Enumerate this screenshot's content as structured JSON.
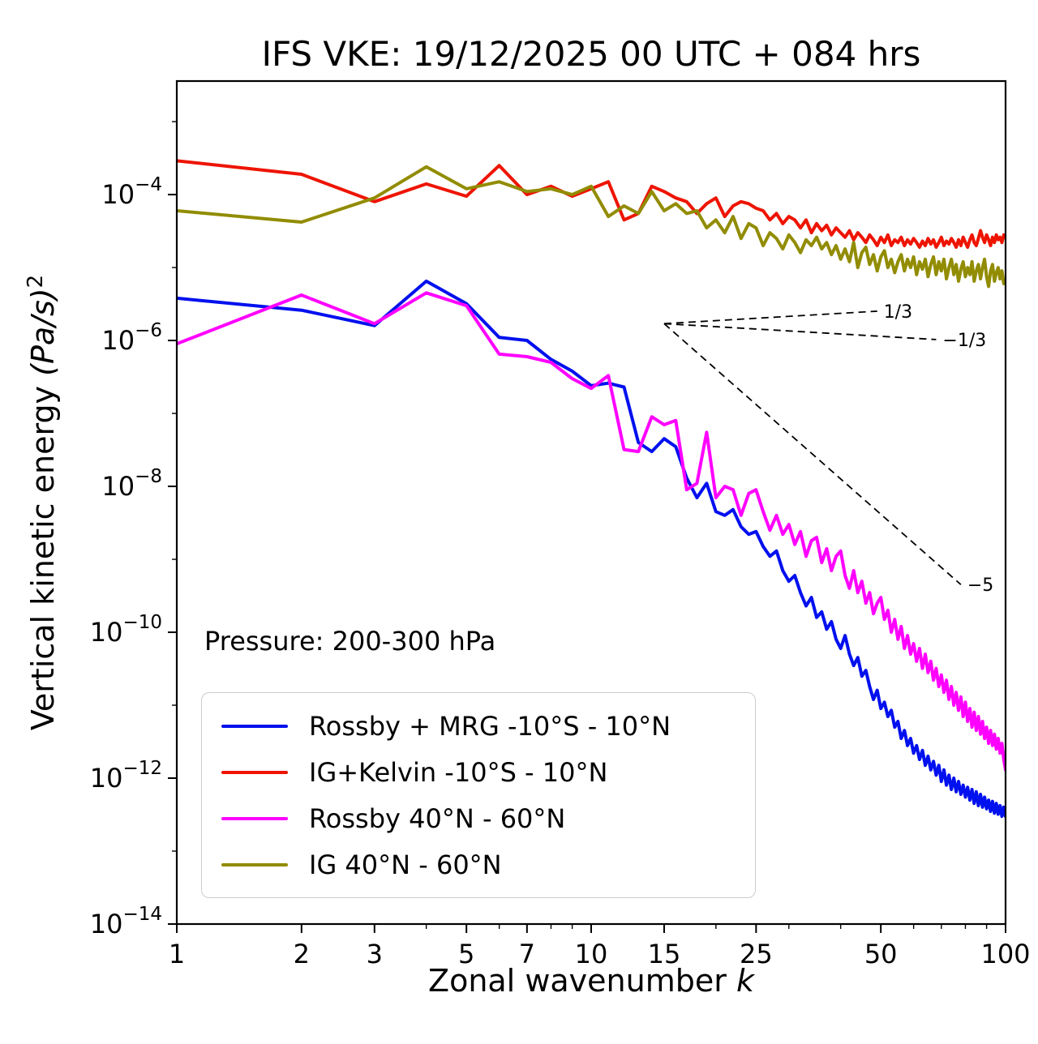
{
  "figure": {
    "title": "IFS VKE: 19/12/2025 00 UTC + 084 hrs",
    "xlabel_prefix": "Zonal wavenumber ",
    "xlabel_var": "k",
    "ylabel_prefix": "Vertical kinetic energy ",
    "ylabel_units": "(Pa/s)",
    "ylabel_sup": "2",
    "annotation": "Pressure: 200-300 hPa"
  },
  "chart_data": {
    "type": "line",
    "title": "IFS VKE: 19/12/2025 00 UTC + 084 hrs",
    "xlabel": "Zonal wavenumber k",
    "ylabel": "Vertical kinetic energy (Pa/s)^2",
    "annotation": "Pressure: 200-300 hPa",
    "x_scale": "log",
    "y_scale": "log",
    "xlim": [
      1,
      100
    ],
    "ylim": [
      1e-14,
      0.0036
    ],
    "x_ticks": [
      1,
      2,
      3,
      5,
      7,
      10,
      15,
      25,
      50,
      100
    ],
    "x_minor_ticks": [
      4,
      6,
      8,
      9,
      20,
      30,
      40,
      60,
      70,
      80,
      90
    ],
    "y_tick_exponents": [
      -4,
      -6,
      -8,
      -10,
      -12,
      -14
    ],
    "y_minor_tick_exponents": [
      -3,
      -5,
      -7,
      -9,
      -11,
      -13
    ],
    "grid": false,
    "legend_position": "lower left",
    "x_is_integer_wavenumbers_1_to_100": true,
    "series": [
      {
        "key": "rossby-mrg-tropics",
        "name": "Rossby + MRG -10°S - 10°N",
        "color": "#0010ee",
        "values": [
          3.8e-06,
          2.6e-06,
          1.6e-06,
          6.5e-06,
          3.2e-06,
          1.1e-06,
          1e-06,
          5.5e-07,
          3.8e-07,
          2.4e-07,
          2.6e-07,
          2.3e-07,
          4e-08,
          3e-08,
          4.5e-08,
          3.5e-08,
          1.3e-08,
          7e-09,
          1.1e-08,
          4.5e-09,
          4e-09,
          4.8e-09,
          2.8e-09,
          2.2e-09,
          2.4e-09,
          1.5e-09,
          1.1e-09,
          1.3e-09,
          7e-10,
          5e-10,
          6e-10,
          3.5e-10,
          2.3e-10,
          3e-10,
          1.6e-10,
          1.9e-10,
          1.1e-10,
          1.4e-10,
          8e-11,
          6e-11,
          9e-11,
          5e-11,
          3.5e-11,
          4.5e-11,
          2.5e-11,
          3e-11,
          1.8e-11,
          1.2e-11,
          1.6e-11,
          9e-12,
          1.1e-11,
          7e-12,
          8.5e-12,
          5e-12,
          6e-12,
          3.5e-12,
          4.5e-12,
          2.8e-12,
          3.5e-12,
          2.2e-12,
          2.8e-12,
          1.8e-12,
          2.4e-12,
          1.5e-12,
          2e-12,
          1.3e-12,
          1.7e-12,
          1.1e-12,
          1.5e-12,
          9e-13,
          1.3e-12,
          8e-13,
          1.1e-12,
          7e-13,
          1e-12,
          6.5e-13,
          9e-13,
          6e-13,
          8e-13,
          5.5e-13,
          7.5e-13,
          5e-13,
          7e-13,
          4.5e-13,
          6.5e-13,
          4.2e-13,
          6e-13,
          4e-13,
          5.5e-13,
          3.8e-13,
          5e-13,
          3.5e-13,
          4.8e-13,
          3.3e-13,
          4.5e-13,
          3.2e-13,
          4.2e-13,
          3e-13,
          4e-13,
          3e-13
        ]
      },
      {
        "key": "ig-kelvin-tropics",
        "name": "IG+Kelvin -10°S - 10°N",
        "color": "#ee1400",
        "values": [
          0.00029,
          0.00019,
          8e-05,
          0.00014,
          9.5e-05,
          0.00025,
          0.0001,
          0.00013,
          9.5e-05,
          0.00012,
          0.00015,
          4.5e-05,
          5.5e-05,
          0.00013,
          0.00011,
          9e-05,
          8e-05,
          5.5e-05,
          7.5e-05,
          9e-05,
          5e-05,
          7e-05,
          8e-05,
          7.5e-05,
          6.5e-05,
          6e-05,
          4.5e-05,
          5.5e-05,
          4e-05,
          5e-05,
          4.5e-05,
          3.5e-05,
          4.5e-05,
          3e-05,
          4e-05,
          3.2e-05,
          3.8e-05,
          2.8e-05,
          3.5e-05,
          3e-05,
          2.6e-05,
          3.2e-05,
          2.4e-05,
          3e-05,
          2.6e-05,
          2.2e-05,
          2.8e-05,
          2.4e-05,
          2e-05,
          2.6e-05,
          2.2e-05,
          2.8e-05,
          2e-05,
          2.4e-05,
          2.2e-05,
          2.6e-05,
          2e-05,
          2.4e-05,
          2.1e-05,
          2.5e-05,
          2.2e-05,
          1.9e-05,
          2.3e-05,
          2e-05,
          2.5e-05,
          2.1e-05,
          2.4e-05,
          1.9e-05,
          2.2e-05,
          2.6e-05,
          2e-05,
          2.3e-05,
          2.1e-05,
          2.5e-05,
          2.2e-05,
          1.9e-05,
          2.4e-05,
          2e-05,
          2.6e-05,
          2.2e-05,
          1.9e-05,
          2.4e-05,
          2.8e-05,
          2.2e-05,
          2e-05,
          2.5e-05,
          3.2e-05,
          2.6e-05,
          2.2e-05,
          2.8e-05,
          2.4e-05,
          2e-05,
          2.6e-05,
          2.2e-05,
          2.8e-05,
          2.4e-05,
          2.6e-05,
          2.2e-05,
          2.8e-05,
          2.6e-05
        ]
      },
      {
        "key": "rossby-midlat",
        "name": "Rossby 40°N - 60°N",
        "color": "#ff00ff",
        "values": [
          9e-07,
          4.2e-06,
          1.7e-06,
          4.5e-06,
          3e-06,
          6.5e-07,
          6e-07,
          5e-07,
          3e-07,
          2.2e-07,
          3.3e-07,
          3.2e-08,
          3e-08,
          9e-08,
          7e-08,
          8e-08,
          9e-09,
          1.1e-08,
          5.5e-08,
          7e-09,
          1e-08,
          9e-09,
          4e-09,
          8e-09,
          9e-09,
          4.5e-09,
          2.5e-09,
          4e-09,
          2.2e-09,
          3e-09,
          1.6e-09,
          2.4e-09,
          1.1e-09,
          1.8e-09,
          2e-09,
          9e-10,
          1.4e-09,
          7e-10,
          1.1e-09,
          1.3e-09,
          6e-10,
          4e-10,
          7e-10,
          3.5e-10,
          5e-10,
          2.5e-10,
          3.5e-10,
          1.8e-10,
          2.5e-10,
          3e-10,
          1.5e-10,
          2e-10,
          1e-10,
          1.5e-10,
          8e-11,
          1.2e-10,
          6e-11,
          9e-11,
          5e-11,
          7e-11,
          4e-11,
          6e-11,
          3.2e-11,
          5e-11,
          2.8e-11,
          4e-11,
          2.2e-11,
          3.2e-11,
          1.8e-11,
          2.6e-11,
          1.5e-11,
          2.2e-11,
          1.2e-11,
          1.8e-11,
          1e-11,
          1.5e-11,
          8.5e-12,
          1.3e-11,
          7e-12,
          1.1e-11,
          6e-12,
          9e-12,
          5e-12,
          8e-12,
          4.5e-12,
          7e-12,
          4e-12,
          6e-12,
          3.5e-12,
          5e-12,
          3e-12,
          4.5e-12,
          2.8e-12,
          4e-12,
          2.5e-12,
          3.5e-12,
          2.2e-12,
          3e-12,
          1.8e-12,
          1.3e-12
        ]
      },
      {
        "key": "ig-midlat",
        "name": "IG 40°N - 60°N",
        "color": "#918c00",
        "values": [
          6e-05,
          4.2e-05,
          9e-05,
          0.00024,
          0.00012,
          0.00015,
          0.00011,
          0.00012,
          0.0001,
          0.00013,
          5e-05,
          7e-05,
          5.5e-05,
          0.00011,
          6e-05,
          7.5e-05,
          5.5e-05,
          6e-05,
          3.5e-05,
          4.5e-05,
          3e-05,
          5e-05,
          2.5e-05,
          4e-05,
          3.5e-05,
          2e-05,
          3e-05,
          2.5e-05,
          1.8e-05,
          2.8e-05,
          2.2e-05,
          1.6e-05,
          2.4e-05,
          2e-05,
          2.6e-05,
          1.8e-05,
          2.2e-05,
          1.5e-05,
          2e-05,
          1.3e-05,
          1.8e-05,
          1.2e-05,
          2.2e-05,
          1e-05,
          1.6e-05,
          1.9e-05,
          1.1e-05,
          1.5e-05,
          9e-06,
          1.4e-05,
          1.7e-05,
          1e-05,
          1.3e-05,
          8.5e-06,
          1.2e-05,
          1.5e-05,
          9e-06,
          1.3e-05,
          1e-05,
          1.4e-05,
          8e-06,
          1.2e-05,
          9.5e-06,
          1.3e-05,
          7.5e-06,
          1.1e-05,
          1.4e-05,
          8e-06,
          1.2e-05,
          9e-06,
          1.3e-05,
          7e-06,
          1e-05,
          1.3e-05,
          8e-06,
          1.1e-05,
          6.5e-06,
          9.5e-06,
          1.2e-05,
          7.5e-06,
          1e-05,
          8e-06,
          1.2e-05,
          6.5e-06,
          9e-06,
          1.1e-05,
          7e-06,
          1e-05,
          1.3e-05,
          7.5e-06,
          5.5e-06,
          9e-06,
          1.1e-05,
          6.5e-06,
          8.5e-06,
          1e-05,
          7e-06,
          9e-06,
          6e-06,
          6.5e-06
        ]
      }
    ],
    "reference_lines": [
      {
        "label": "1/3",
        "slope": 0.3333,
        "x1": 15,
        "y1": 1.7e-06,
        "x2": 49,
        "y2": 2.52e-06
      },
      {
        "label": "-1/3",
        "slope": -0.3333,
        "x1": 15,
        "y1": 1.7e-06,
        "x2": 68,
        "y2": 1.03e-06
      },
      {
        "label": "-5",
        "slope": -5,
        "x1": 15,
        "y1": 1.7e-06,
        "x2": 78,
        "y2": 4.5e-10
      }
    ]
  }
}
